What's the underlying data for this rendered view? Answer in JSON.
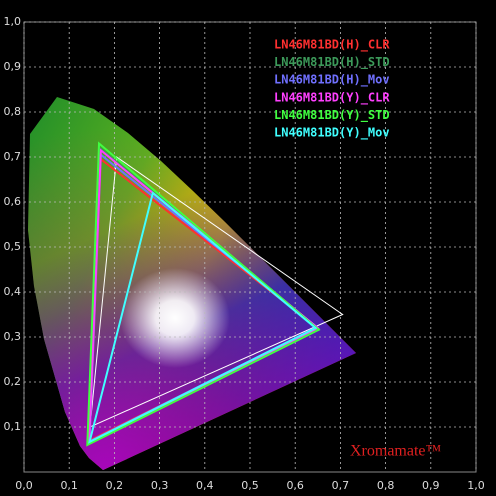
{
  "chart_data": {
    "type": "line",
    "watermark": "Xromamate™",
    "xlim": [
      0,
      1
    ],
    "ylim": [
      0,
      1
    ],
    "xticks": [
      {
        "value": 0,
        "label": "0,0"
      },
      {
        "value": 0.1,
        "label": "0,1"
      },
      {
        "value": 0.2,
        "label": "0,2"
      },
      {
        "value": 0.3,
        "label": "0,3"
      },
      {
        "value": 0.4,
        "label": "0,4"
      },
      {
        "value": 0.5,
        "label": "0,5"
      },
      {
        "value": 0.6,
        "label": "0,6"
      },
      {
        "value": 0.7,
        "label": "0,7"
      },
      {
        "value": 0.8,
        "label": "0,8"
      },
      {
        "value": 0.9,
        "label": "0,9"
      },
      {
        "value": 1,
        "label": "1,0"
      }
    ],
    "yticks": [
      {
        "value": 0.1,
        "label": "0,1"
      },
      {
        "value": 0.2,
        "label": "0,2"
      },
      {
        "value": 0.3,
        "label": "0,3"
      },
      {
        "value": 0.4,
        "label": "0,4"
      },
      {
        "value": 0.5,
        "label": "0,5"
      },
      {
        "value": 0.6,
        "label": "0,6"
      },
      {
        "value": 0.7,
        "label": "0,7"
      },
      {
        "value": 0.8,
        "label": "0,8"
      },
      {
        "value": 0.9,
        "label": "0,9"
      },
      {
        "value": 1,
        "label": "1,0"
      }
    ],
    "grid": true,
    "series": [
      {
        "color": "#ffffff",
        "x": [
          0.205,
          0.705,
          0.146
        ],
        "values": [
          0.7,
          0.35,
          0.1
        ]
      },
      {
        "name": "LN46M81BD(H)_CLR",
        "color": "#ff3030",
        "x": [
          0.17,
          0.65,
          0.145
        ],
        "values": [
          0.695,
          0.32,
          0.07
        ]
      },
      {
        "name": "LN46M81BD(H)_STD",
        "color": "#3c9a5a",
        "x": [
          0.168,
          0.652,
          0.143
        ],
        "values": [
          0.72,
          0.318,
          0.065
        ]
      },
      {
        "name": "LN46M81BD(H)_Mov",
        "color": "#7070ff",
        "x": [
          0.17,
          0.648,
          0.145
        ],
        "values": [
          0.705,
          0.322,
          0.068
        ]
      },
      {
        "name": "LN46M81BD(Y)_CLR",
        "color": "#ff40ff",
        "x": [
          0.17,
          0.65,
          0.144
        ],
        "values": [
          0.715,
          0.32,
          0.066
        ]
      },
      {
        "name": "LN46M81BD(Y)_STD",
        "color": "#40ff40",
        "x": [
          0.166,
          0.652,
          0.14
        ],
        "values": [
          0.73,
          0.316,
          0.06
        ]
      },
      {
        "name": "LN46M81BD(Y)_Mov",
        "color": "#40ffff",
        "x": [
          0.285,
          0.645,
          0.145
        ],
        "values": [
          0.62,
          0.32,
          0.067
        ]
      }
    ]
  }
}
